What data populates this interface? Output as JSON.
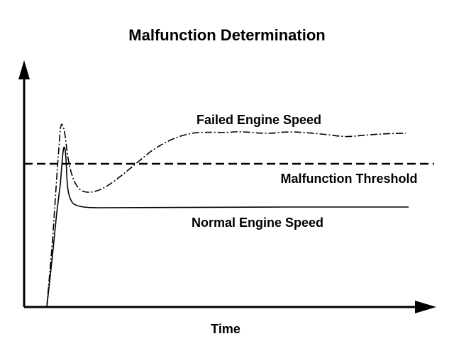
{
  "diagram": {
    "title": "Malfunction Determination",
    "x_axis_label": "Time",
    "annotations": {
      "failed": "Failed Engine Speed",
      "threshold": "Malfunction Threshold",
      "normal": "Normal Engine Speed"
    },
    "curves": [
      {
        "id": "failed",
        "style": "dash-dot"
      },
      {
        "id": "normal",
        "style": "solid"
      },
      {
        "id": "threshold",
        "style": "dashed"
      }
    ],
    "colors": {
      "ink": "#000000",
      "background": "#ffffff"
    }
  }
}
